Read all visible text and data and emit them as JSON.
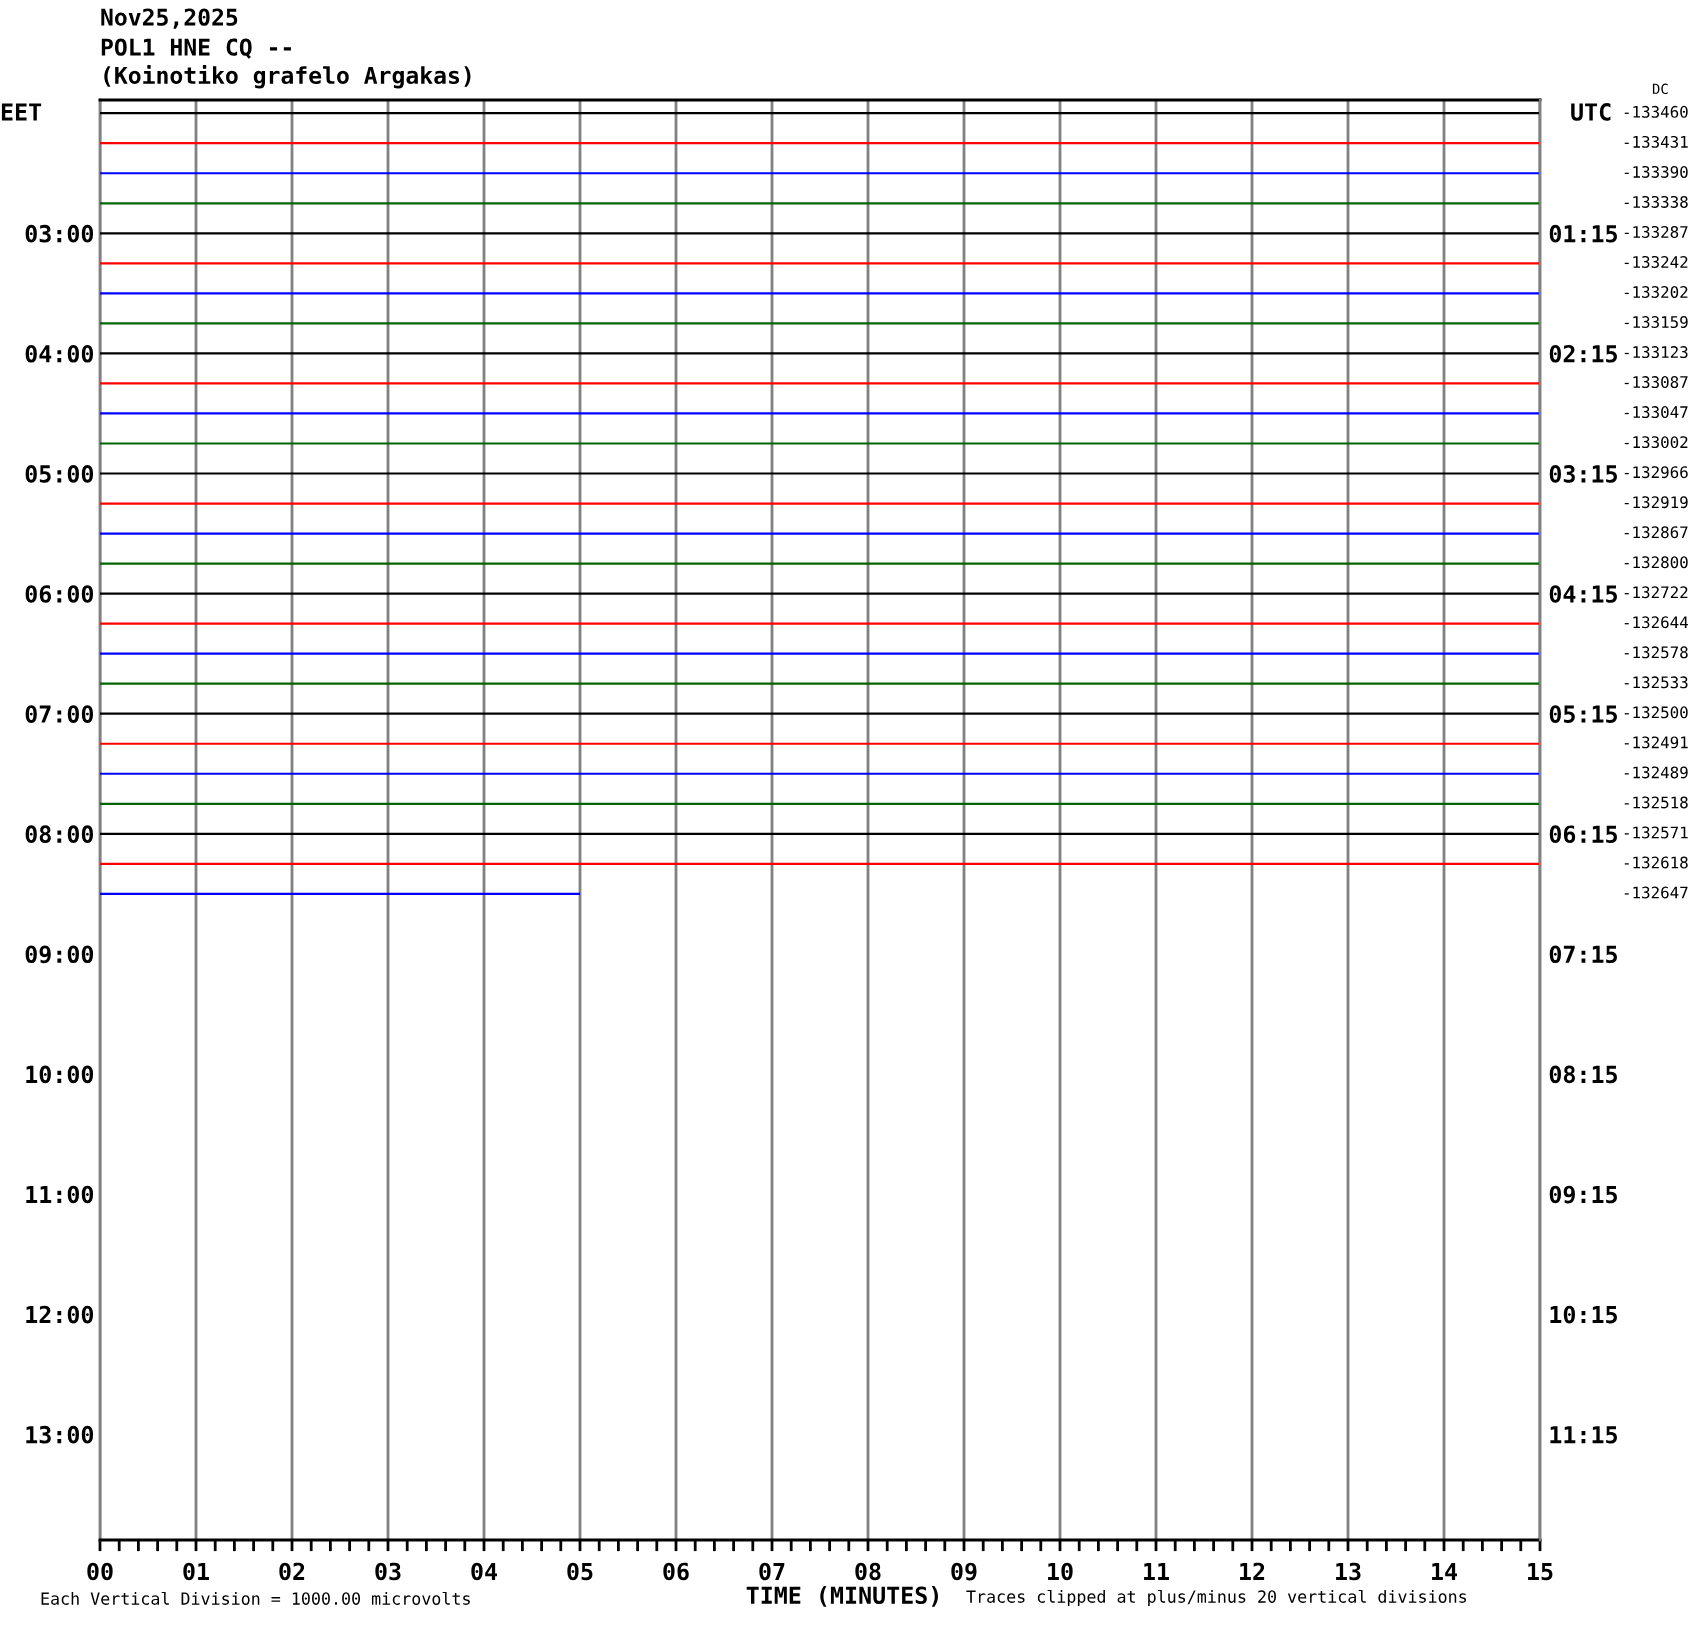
{
  "chart_data": {
    "type": "line",
    "title": "Nov25,2025",
    "subtitle": "POL1 HNE CQ --\n(Koinotiko grafelo Argakas)",
    "xlabel": "TIME (MINUTES)",
    "ylabel": "EET",
    "y2label": "UTC",
    "annotations": [
      "Each Vertical Division = 1000.00 microvolts",
      "Traces clipped at plus/minus 20 vertical divisions",
      "DC"
    ],
    "xlim": [
      0,
      15
    ],
    "xticks": [
      {
        "value": 0,
        "label": "00"
      },
      {
        "value": 0.2,
        "label": null
      },
      {
        "value": 0.4,
        "label": null
      },
      {
        "value": 0.6,
        "label": null
      },
      {
        "value": 0.8,
        "label": null
      },
      {
        "value": 1,
        "label": "01"
      },
      {
        "value": 1.2,
        "label": null
      },
      {
        "value": 1.4,
        "label": null
      },
      {
        "value": 1.6,
        "label": null
      },
      {
        "value": 1.8,
        "label": null
      },
      {
        "value": 2,
        "label": "02"
      },
      {
        "value": 2.2,
        "label": null
      },
      {
        "value": 2.4,
        "label": null
      },
      {
        "value": 2.6,
        "label": null
      },
      {
        "value": 2.8,
        "label": null
      },
      {
        "value": 3,
        "label": "03"
      },
      {
        "value": 3.2,
        "label": null
      },
      {
        "value": 3.4,
        "label": null
      },
      {
        "value": 3.6,
        "label": null
      },
      {
        "value": 3.8,
        "label": null
      },
      {
        "value": 4,
        "label": "04"
      },
      {
        "value": 4.2,
        "label": null
      },
      {
        "value": 4.4,
        "label": null
      },
      {
        "value": 4.6,
        "label": null
      },
      {
        "value": 4.8,
        "label": null
      },
      {
        "value": 5,
        "label": "05"
      },
      {
        "value": 5.2,
        "label": null
      },
      {
        "value": 5.4,
        "label": null
      },
      {
        "value": 5.6,
        "label": null
      },
      {
        "value": 5.8,
        "label": null
      },
      {
        "value": 6,
        "label": "06"
      },
      {
        "value": 6.2,
        "label": null
      },
      {
        "value": 6.4,
        "label": null
      },
      {
        "value": 6.6,
        "label": null
      },
      {
        "value": 6.8,
        "label": null
      },
      {
        "value": 7,
        "label": "07"
      },
      {
        "value": 7.2,
        "label": null
      },
      {
        "value": 7.4,
        "label": null
      },
      {
        "value": 7.6,
        "label": null
      },
      {
        "value": 7.8,
        "label": null
      },
      {
        "value": 8,
        "label": "08"
      },
      {
        "value": 8.2,
        "label": null
      },
      {
        "value": 8.4,
        "label": null
      },
      {
        "value": 8.6,
        "label": null
      },
      {
        "value": 8.8,
        "label": null
      },
      {
        "value": 9,
        "label": "09"
      },
      {
        "value": 9.2,
        "label": null
      },
      {
        "value": 9.4,
        "label": null
      },
      {
        "value": 9.6,
        "label": null
      },
      {
        "value": 9.8,
        "label": null
      },
      10,
      {
        "value": 10.2,
        "label": null
      },
      {
        "value": 10.4,
        "label": null
      },
      {
        "value": 10.6,
        "label": null
      },
      {
        "value": 10.8,
        "label": null
      },
      11,
      {
        "value": 11.2,
        "label": null
      },
      {
        "value": 11.4,
        "label": null
      },
      {
        "value": 11.6,
        "label": null
      },
      {
        "value": 11.8,
        "label": null
      },
      12,
      {
        "value": 12.2,
        "label": null
      },
      {
        "value": 12.4,
        "label": null
      },
      {
        "value": 12.6,
        "label": null
      },
      {
        "value": 12.8,
        "label": null
      },
      13,
      {
        "value": 13.2,
        "label": null
      },
      {
        "value": 13.4,
        "label": null
      },
      {
        "value": 13.6,
        "label": null
      },
      {
        "value": 13.8,
        "label": null
      },
      14,
      {
        "value": 14.2,
        "label": null
      },
      {
        "value": 14.4,
        "label": null
      },
      {
        "value": 14.6,
        "label": null
      },
      {
        "value": 14.8,
        "label": null
      },
      15
    ],
    "ylim": [
      13.88,
      1.89
    ],
    "yticks": [
      {
        "value": 3,
        "label": "03:00"
      },
      {
        "value": 4,
        "label": "04:00"
      },
      {
        "value": 5,
        "label": "05:00"
      },
      {
        "value": 6,
        "label": "06:00"
      },
      {
        "value": 7,
        "label": "07:00"
      },
      {
        "value": 8,
        "label": "08:00"
      },
      {
        "value": 9,
        "label": "09:00"
      },
      {
        "value": 10,
        "label": "10:00"
      },
      {
        "value": 11,
        "label": "11:00"
      },
      {
        "value": 12,
        "label": "12:00"
      },
      {
        "value": 13,
        "label": "13:00"
      }
    ],
    "y2lim": [
      12.13,
      0.14
    ],
    "y2ticks": [
      {
        "value": 1.25,
        "label": "01:15"
      },
      {
        "value": 2.25,
        "label": "02:15"
      },
      {
        "value": 3.25,
        "label": "03:15"
      },
      {
        "value": 4.25,
        "label": "04:15"
      },
      {
        "value": 5.25,
        "label": "05:15"
      },
      {
        "value": 6.25,
        "label": "06:15"
      },
      {
        "value": 7.25,
        "label": "07:15"
      },
      {
        "value": 8.25,
        "label": "08:15"
      },
      {
        "value": 9.25,
        "label": "09:15"
      },
      {
        "value": 10.25,
        "label": "10:15"
      },
      {
        "value": 11.25,
        "label": "11:15"
      }
    ],
    "grid": "x",
    "series": [
      {
        "name": "-133460",
        "color": "#000000",
        "x": [
          0,
          15
        ],
        "values": [
          2,
          2
        ]
      },
      {
        "name": "-133431",
        "color": "#ff0000",
        "x": [
          0,
          15
        ],
        "values": [
          2.25,
          2.25
        ]
      },
      {
        "name": "-133390",
        "color": "#0000ff",
        "x": [
          0,
          15
        ],
        "values": [
          2.5,
          2.5
        ]
      },
      {
        "name": "-133338",
        "color": "#006400",
        "x": [
          0,
          15
        ],
        "values": [
          2.75,
          2.75
        ]
      },
      {
        "name": "-133287",
        "color": "#000000",
        "x": [
          0,
          15
        ],
        "values": [
          3,
          3
        ]
      },
      {
        "name": "-133242",
        "color": "#ff0000",
        "x": [
          0,
          15
        ],
        "values": [
          3.25,
          3.25
        ]
      },
      {
        "name": "-133202",
        "color": "#0000ff",
        "x": [
          0,
          15
        ],
        "values": [
          3.5,
          3.5
        ]
      },
      {
        "name": "-133159",
        "color": "#006400",
        "x": [
          0,
          15
        ],
        "values": [
          3.75,
          3.75
        ]
      },
      {
        "name": "-133123",
        "color": "#000000",
        "x": [
          0,
          15
        ],
        "values": [
          4,
          4
        ]
      },
      {
        "name": "-133087",
        "color": "#ff0000",
        "x": [
          0,
          15
        ],
        "values": [
          4.25,
          4.25
        ]
      },
      {
        "name": "-133047",
        "color": "#0000ff",
        "x": [
          0,
          15
        ],
        "values": [
          4.5,
          4.5
        ]
      },
      {
        "name": "-133002",
        "color": "#006400",
        "x": [
          0,
          15
        ],
        "values": [
          4.75,
          4.75
        ]
      },
      {
        "name": "-132966",
        "color": "#000000",
        "x": [
          0,
          15
        ],
        "values": [
          5,
          5
        ]
      },
      {
        "name": "-132919",
        "color": "#ff0000",
        "x": [
          0,
          15
        ],
        "values": [
          5.25,
          5.25
        ]
      },
      {
        "name": "-132867",
        "color": "#0000ff",
        "x": [
          0,
          15
        ],
        "values": [
          5.5,
          5.5
        ]
      },
      {
        "name": "-132800",
        "color": "#006400",
        "x": [
          0,
          15
        ],
        "values": [
          5.75,
          5.75
        ]
      },
      {
        "name": "-132722",
        "color": "#000000",
        "x": [
          0,
          15
        ],
        "values": [
          6,
          6
        ]
      },
      {
        "name": "-132644",
        "color": "#ff0000",
        "x": [
          0,
          15
        ],
        "values": [
          6.25,
          6.25
        ]
      },
      {
        "name": "-132578",
        "color": "#0000ff",
        "x": [
          0,
          15
        ],
        "values": [
          6.5,
          6.5
        ]
      },
      {
        "name": "-132533",
        "color": "#006400",
        "x": [
          0,
          15
        ],
        "values": [
          6.75,
          6.75
        ]
      },
      {
        "name": "-132500",
        "color": "#000000",
        "x": [
          0,
          15
        ],
        "values": [
          7,
          7
        ]
      },
      {
        "name": "-132491",
        "color": "#ff0000",
        "x": [
          0,
          15
        ],
        "values": [
          7.25,
          7.25
        ]
      },
      {
        "name": "-132489",
        "color": "#0000ff",
        "x": [
          0,
          15
        ],
        "values": [
          7.5,
          7.5
        ]
      },
      {
        "name": "-132518",
        "color": "#006400",
        "x": [
          0,
          15
        ],
        "values": [
          7.75,
          7.75
        ]
      },
      {
        "name": "-132571",
        "color": "#000000",
        "x": [
          0,
          15
        ],
        "values": [
          8,
          8
        ]
      },
      {
        "name": "-132618",
        "color": "#ff0000",
        "x": [
          0,
          15
        ],
        "values": [
          8.25,
          8.25
        ]
      },
      {
        "name": "-132647",
        "color": "#0000ff",
        "x": [
          0,
          5
        ],
        "values": [
          8.5,
          8.5
        ]
      }
    ]
  }
}
